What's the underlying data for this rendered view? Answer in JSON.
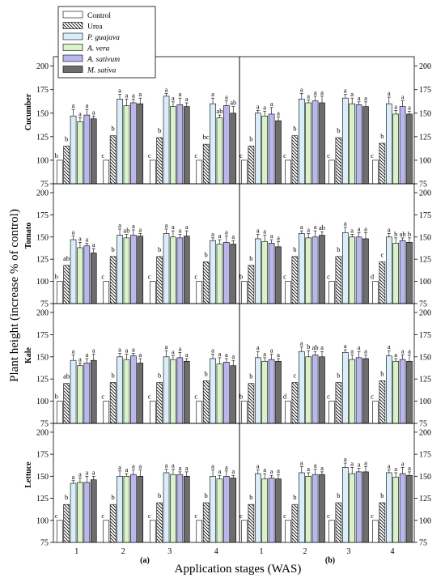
{
  "chart_data": {
    "type": "bar",
    "ylabel": "Plant height (increase % of control)",
    "xlabel": "Application stages (WAS)",
    "categories": [
      "1",
      "2",
      "3",
      "4"
    ],
    "ylim": [
      75,
      210
    ],
    "yticks": [
      75,
      100,
      125,
      150,
      175,
      200
    ],
    "panel_letters": [
      "(a)",
      "(b)"
    ],
    "legend": {
      "placement": "top-left",
      "entries": [
        "Control",
        "Urea",
        "P. guajava",
        "A. vera",
        "A. sativum",
        "M. sativa"
      ],
      "fills": [
        "#ffffff",
        "hatch",
        "#d8eff9",
        "#d8f3c8",
        "#b9b7ee",
        "#6d6d6d"
      ]
    },
    "rows": [
      "Cucumber",
      "Tomato",
      "Kale",
      "Lettuce"
    ],
    "panels": [
      {
        "crop": "Cucumber",
        "column": "(a)",
        "series": [
          {
            "values": [
              100,
              100,
              100,
              100
            ],
            "letters": [
              "b",
              "c",
              "c",
              "c"
            ]
          },
          {
            "values": [
              115,
              126,
              124,
              117
            ],
            "letters": [
              "b",
              "b",
              "b",
              "bc"
            ]
          },
          {
            "values": [
              147,
              165,
              168,
              160
            ],
            "letters": [
              "a",
              "a",
              "a",
              "a"
            ]
          },
          {
            "values": [
              141,
              158,
              157,
              145
            ],
            "letters": [
              "a",
              "a",
              "a",
              "ab"
            ]
          },
          {
            "values": [
              148,
              161,
              159,
              158
            ],
            "letters": [
              "a",
              "a",
              "a",
              "a"
            ]
          },
          {
            "values": [
              144,
              160,
              157,
              150
            ],
            "letters": [
              "a",
              "a",
              "a",
              "ab"
            ]
          }
        ]
      },
      {
        "crop": "Cucumber",
        "column": "(b)",
        "series": [
          {
            "values": [
              100,
              100,
              100,
              100
            ],
            "letters": [
              "c",
              "c",
              "c",
              "c"
            ]
          },
          {
            "values": [
              115,
              126,
              124,
              118
            ],
            "letters": [
              "b",
              "b",
              "b",
              "b"
            ]
          },
          {
            "values": [
              150,
              165,
              166,
              160
            ],
            "letters": [
              "a",
              "a",
              "a",
              "a"
            ]
          },
          {
            "values": [
              147,
              161,
              160,
              149
            ],
            "letters": [
              "a",
              "a",
              "a",
              "a"
            ]
          },
          {
            "values": [
              149,
              163,
              159,
              157
            ],
            "letters": [
              "a",
              "a",
              "a",
              "a"
            ]
          },
          {
            "values": [
              142,
              161,
              157,
              149
            ],
            "letters": [
              "a",
              "a",
              "a",
              "a"
            ]
          }
        ]
      },
      {
        "crop": "Tomato",
        "column": "(a)",
        "series": [
          {
            "values": [
              100,
              100,
              100,
              100
            ],
            "letters": [
              "b",
              "c",
              "c",
              "c"
            ]
          },
          {
            "values": [
              118,
              128,
              128,
              122
            ],
            "letters": [
              "ab",
              "b",
              "b",
              "b"
            ]
          },
          {
            "values": [
              147,
              152,
              154,
              146
            ],
            "letters": [
              "a",
              "a",
              "a",
              "a"
            ]
          },
          {
            "values": [
              138,
              149,
              150,
              142
            ],
            "letters": [
              "a",
              "ab",
              "a",
              "a"
            ]
          },
          {
            "values": [
              140,
              152,
              149,
              144
            ],
            "letters": [
              "a",
              "a",
              "a",
              "a"
            ]
          },
          {
            "values": [
              132,
              151,
              151,
              142
            ],
            "letters": [
              "a",
              "a",
              "a",
              "a"
            ]
          }
        ]
      },
      {
        "crop": "Tomato",
        "column": "(b)",
        "series": [
          {
            "values": [
              100,
              100,
              100,
              100
            ],
            "letters": [
              "b",
              "c",
              "c",
              "d"
            ]
          },
          {
            "values": [
              118,
              128,
              128,
              122
            ],
            "letters": [
              "b",
              "b",
              "b",
              "c"
            ]
          },
          {
            "values": [
              148,
              154,
              155,
              150
            ],
            "letters": [
              "a",
              "a",
              "a",
              "a"
            ]
          },
          {
            "values": [
              145,
              149,
              150,
              143
            ],
            "letters": [
              "a",
              "a",
              "a",
              "b"
            ]
          },
          {
            "values": [
              143,
              150,
              150,
              146
            ],
            "letters": [
              "a",
              "a",
              "a",
              "ab"
            ]
          },
          {
            "values": [
              139,
              152,
              148,
              144
            ],
            "letters": [
              "a",
              "ab",
              "a",
              "b"
            ]
          }
        ]
      },
      {
        "crop": "Kale",
        "column": "(a)",
        "series": [
          {
            "values": [
              100,
              100,
              100,
              100
            ],
            "letters": [
              "b",
              "c",
              "c",
              "c"
            ]
          },
          {
            "values": [
              120,
              121,
              121,
              123
            ],
            "letters": [
              "ab",
              "b",
              "b",
              "b"
            ]
          },
          {
            "values": [
              146,
              150,
              150,
              148
            ],
            "letters": [
              "a",
              "a",
              "a",
              "a"
            ]
          },
          {
            "values": [
              140,
              147,
              147,
              142
            ],
            "letters": [
              "a",
              "a",
              "a",
              "a"
            ]
          },
          {
            "values": [
              143,
              151,
              149,
              144
            ],
            "letters": [
              "a",
              "a",
              "a",
              "a"
            ]
          },
          {
            "values": [
              146,
              143,
              145,
              140
            ],
            "letters": [
              "a",
              "a",
              "a",
              "a"
            ]
          }
        ]
      },
      {
        "crop": "Kale",
        "column": "(b)",
        "series": [
          {
            "values": [
              100,
              100,
              100,
              100
            ],
            "letters": [
              "b",
              "d",
              "c",
              "c"
            ]
          },
          {
            "values": [
              120,
              121,
              121,
              123
            ],
            "letters": [
              "b",
              "c",
              "b",
              "b"
            ]
          },
          {
            "values": [
              149,
              156,
              155,
              151
            ],
            "letters": [
              "a",
              "a",
              "a",
              "a"
            ]
          },
          {
            "values": [
              145,
              150,
              147,
              145
            ],
            "letters": [
              "a",
              "b",
              "a",
              "a"
            ]
          },
          {
            "values": [
              147,
              152,
              149,
              147
            ],
            "letters": [
              "a",
              "ab",
              "a",
              "a"
            ]
          },
          {
            "values": [
              145,
              150,
              148,
              145
            ],
            "letters": [
              "a",
              "a",
              "a",
              "a"
            ]
          }
        ]
      },
      {
        "crop": "Lettuce",
        "column": "(a)",
        "series": [
          {
            "values": [
              100,
              100,
              100,
              100
            ],
            "letters": [
              "c",
              "c",
              "c",
              "c"
            ]
          },
          {
            "values": [
              118,
              118,
              120,
              120
            ],
            "letters": [
              "b",
              "b",
              "b",
              "b"
            ]
          },
          {
            "values": [
              142,
              150,
              154,
              150
            ],
            "letters": [
              "a",
              "a",
              "a",
              "a"
            ]
          },
          {
            "values": [
              143,
              150,
              152,
              147
            ],
            "letters": [
              "a",
              "a",
              "a",
              "a"
            ]
          },
          {
            "values": [
              143,
              152,
              152,
              150
            ],
            "letters": [
              "a",
              "a",
              "a",
              "a"
            ]
          },
          {
            "values": [
              146,
              150,
              150,
              148
            ],
            "letters": [
              "a",
              "a",
              "a",
              "a"
            ]
          }
        ]
      },
      {
        "crop": "Lettuce",
        "column": "(b)",
        "series": [
          {
            "values": [
              100,
              100,
              100,
              100
            ],
            "letters": [
              "c",
              "c",
              "c",
              "c"
            ]
          },
          {
            "values": [
              118,
              118,
              120,
              120
            ],
            "letters": [
              "b",
              "b",
              "b",
              "b"
            ]
          },
          {
            "values": [
              153,
              154,
              160,
              154
            ],
            "letters": [
              "a",
              "a",
              "a",
              "a"
            ]
          },
          {
            "values": [
              147,
              150,
              153,
              149
            ],
            "letters": [
              "a",
              "a",
              "a",
              "a"
            ]
          },
          {
            "values": [
              148,
              152,
              155,
              153
            ],
            "letters": [
              "a",
              "a",
              "a",
              "a"
            ]
          },
          {
            "values": [
              147,
              152,
              155,
              151
            ],
            "letters": [
              "a",
              "a",
              "a",
              "a"
            ]
          }
        ]
      }
    ]
  }
}
